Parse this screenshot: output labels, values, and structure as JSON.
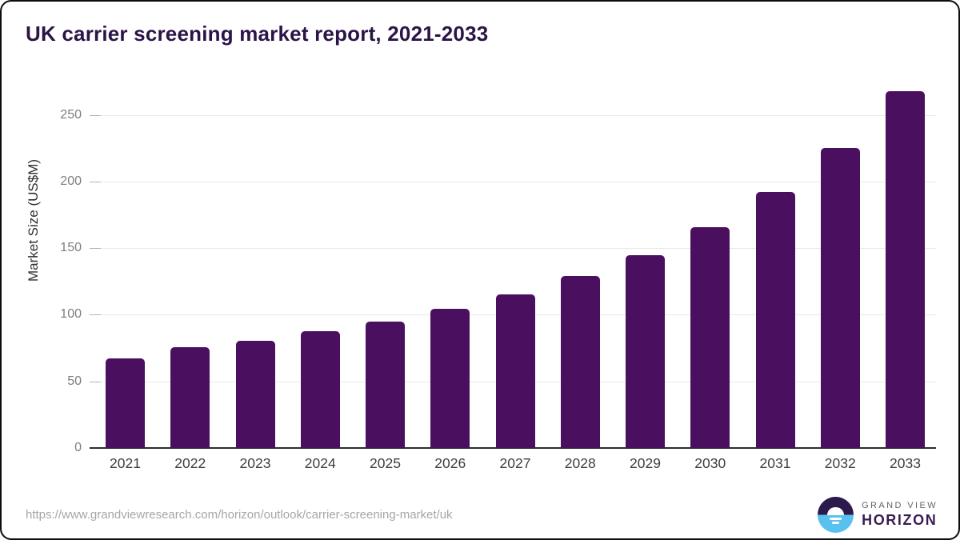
{
  "title": "UK carrier screening market report, 2021-2033",
  "chart_data": {
    "type": "bar",
    "categories": [
      "2021",
      "2022",
      "2023",
      "2024",
      "2025",
      "2026",
      "2027",
      "2028",
      "2029",
      "2030",
      "2031",
      "2032",
      "2033"
    ],
    "values": [
      67.5,
      75.5,
      80.5,
      87.5,
      95,
      104.5,
      115,
      129,
      145,
      166,
      192,
      225,
      268
    ],
    "title": "UK carrier screening market report, 2021-2033",
    "xlabel": "",
    "ylabel": "Market Size (US$M)",
    "yticks": [
      0,
      50,
      100,
      150,
      200,
      250
    ],
    "ylim": [
      0,
      275
    ],
    "grid": "horizontal",
    "legend": "none",
    "bar_color": "#4a0f5f"
  },
  "colors": {
    "bar": "#4a0f5f",
    "title_text": "#2b1447",
    "axis_line": "#2d2d2d",
    "gridline": "#e9e9e9",
    "logo_dark": "#2c1a4d",
    "logo_blue": "#59c1ef"
  },
  "footer": {
    "url": "https://www.grandviewresearch.com/horizon/outlook/carrier-screening-market/uk",
    "logo": {
      "line1": "GRAND VIEW",
      "line2": "HORIZON"
    }
  }
}
